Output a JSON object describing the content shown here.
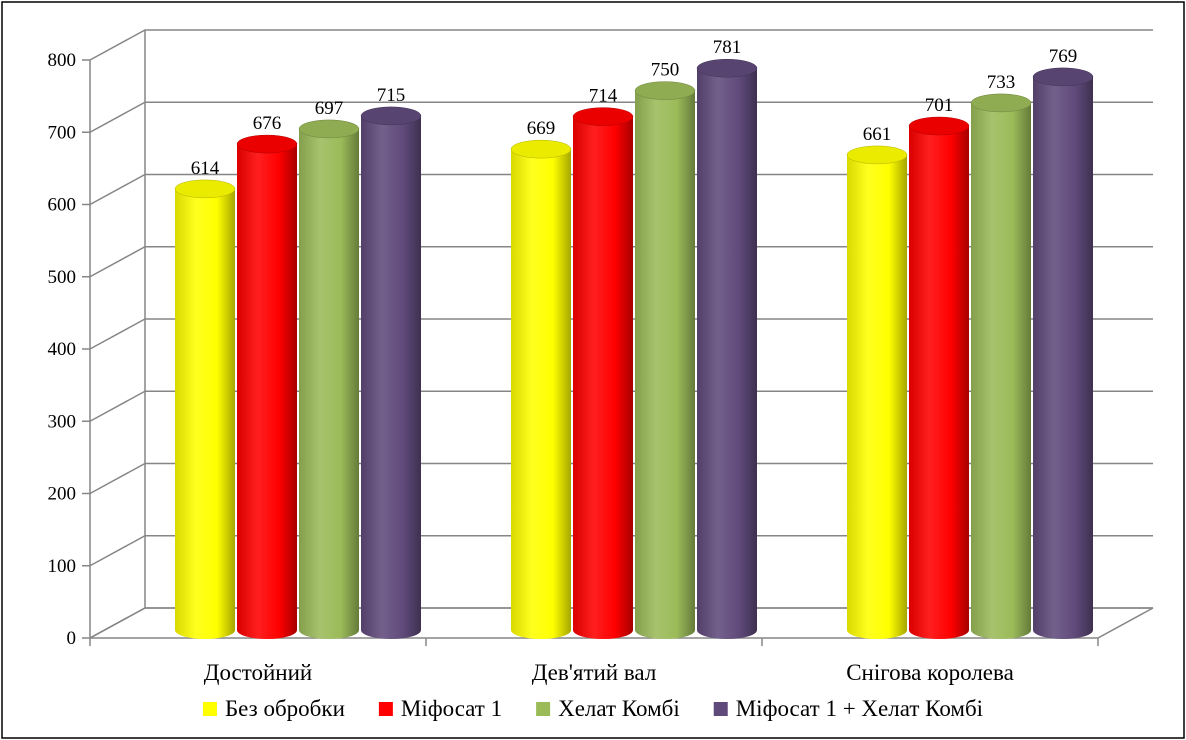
{
  "chart_data": {
    "type": "bar",
    "categories": [
      "Достойний",
      "Дев'ятий вал",
      "Снігова королева"
    ],
    "series": [
      {
        "name": "Без обробки",
        "color": "#ffff00",
        "values": [
          614,
          669,
          661
        ]
      },
      {
        "name": "Міфосат 1",
        "color": "#ff0000",
        "values": [
          676,
          714,
          701
        ]
      },
      {
        "name": "Хелат Комбі",
        "color": "#9bbb59",
        "values": [
          697,
          750,
          733
        ]
      },
      {
        "name": "Міфосат 1 + Хелат Комбі",
        "color": "#604a7b",
        "values": [
          715,
          781,
          769
        ]
      }
    ],
    "ylim": [
      0,
      800
    ],
    "yticks": [
      0,
      100,
      200,
      300,
      400,
      500,
      600,
      700,
      800
    ],
    "grid": true,
    "legend": "bottom",
    "style": "3d-cylinder"
  }
}
